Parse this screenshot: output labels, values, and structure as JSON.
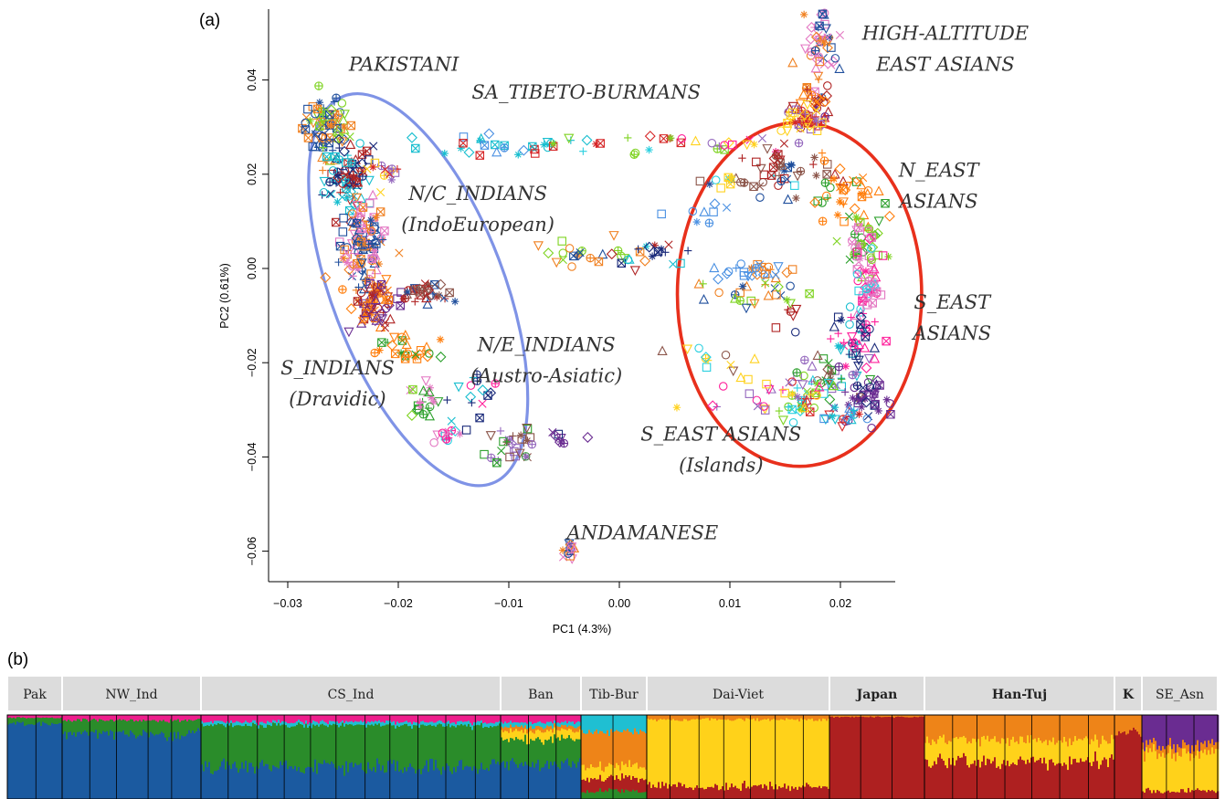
{
  "panel_a_label": "(a)",
  "panel_b_label": "(b)",
  "chart_data": [
    {
      "type": "scatter",
      "xlabel": "PC1 (4.3%)",
      "ylabel": "PC2 (0.61%)",
      "xlim": [
        -0.031,
        0.025
      ],
      "ylim": [
        -0.066,
        0.054
      ],
      "xticks": [
        -0.03,
        -0.02,
        -0.01,
        0.0,
        0.01,
        0.02
      ],
      "xtick_labels": [
        "−0.03",
        "−0.02",
        "−0.01",
        "0.00",
        "0.01",
        "0.02"
      ],
      "yticks": [
        -0.06,
        -0.04,
        -0.02,
        0.0,
        0.02,
        0.04
      ],
      "ytick_labels": [
        "−0.06",
        "−0.04",
        "−0.02",
        "0.00",
        "0.02",
        "0.04"
      ],
      "grid": false,
      "annotations": [
        {
          "lines": [
            "PAKISTANI"
          ],
          "x": -0.0195,
          "y": 0.042
        },
        {
          "lines": [
            "SA_TIBETO-BURMANS"
          ],
          "x": -0.003,
          "y": 0.036
        },
        {
          "lines": [
            "HIGH-ALTITUDE",
            "EAST ASIANS"
          ],
          "x": 0.0295,
          "y": 0.0485
        },
        {
          "lines": [
            "N/C_INDIANS",
            "(IndoEuropean)"
          ],
          "x": -0.0128,
          "y": 0.0145
        },
        {
          "lines": [
            "N_EAST",
            "ASIANS"
          ],
          "x": 0.0289,
          "y": 0.0195
        },
        {
          "lines": [
            "S_EAST",
            "ASIANS"
          ],
          "x": 0.0301,
          "y": -0.0085
        },
        {
          "lines": [
            "N/E_INDIANS",
            "(Austro-Asiatic)"
          ],
          "x": -0.0066,
          "y": -0.0175
        },
        {
          "lines": [
            "S_INDIANS",
            "(Dravidic)"
          ],
          "x": -0.0255,
          "y": -0.0225
        },
        {
          "lines": [
            "S_EAST ASIANS",
            "(Islands)"
          ],
          "x": 0.0092,
          "y": -0.0365
        },
        {
          "lines": [
            "ANDAMANESE"
          ],
          "x": 0.0021,
          "y": -0.0575
        }
      ],
      "ellipses": [
        {
          "name": "south-asian-ellipse",
          "color": "#7f93e6",
          "cx": -0.0182,
          "cy": -0.0045,
          "rx_deg": 0.0078,
          "ry": 0.044,
          "tilt_deg": 21
        },
        {
          "name": "east-asian-ellipse",
          "color": "#e8301c",
          "cx": 0.0163,
          "cy": -0.0055,
          "rx": 0.01105,
          "ry": 0.0365
        }
      ],
      "clusters": [
        {
          "x": -0.0265,
          "y": 0.03,
          "sx": 0.0011,
          "sy": 0.0035,
          "n": 75
        },
        {
          "x": -0.0245,
          "y": 0.019,
          "sx": 0.0011,
          "sy": 0.004,
          "n": 85
        },
        {
          "x": -0.0232,
          "y": 0.005,
          "sx": 0.001,
          "sy": 0.0045,
          "n": 110
        },
        {
          "x": -0.0222,
          "y": -0.007,
          "sx": 0.001,
          "sy": 0.0025,
          "n": 70
        },
        {
          "x": -0.0212,
          "y": 0.021,
          "sx": 0.0007,
          "sy": 0.0012,
          "n": 14
        },
        {
          "x": -0.0182,
          "y": -0.005,
          "sx": 0.0014,
          "sy": 0.0012,
          "n": 35
        },
        {
          "x": -0.0188,
          "y": -0.018,
          "sx": 0.0016,
          "sy": 0.002,
          "n": 28
        },
        {
          "x": -0.0175,
          "y": -0.028,
          "sx": 0.0009,
          "sy": 0.002,
          "n": 22
        },
        {
          "x": -0.0158,
          "y": -0.035,
          "sx": 0.0008,
          "sy": 0.0012,
          "n": 12
        },
        {
          "x": -0.0138,
          "y": -0.027,
          "sx": 0.0016,
          "sy": 0.0025,
          "n": 16
        },
        {
          "x": -0.0095,
          "y": -0.0365,
          "sx": 0.0011,
          "sy": 0.0025,
          "n": 30
        },
        {
          "x": -0.0052,
          "y": -0.036,
          "sx": 0.001,
          "sy": 0.0012,
          "n": 8
        },
        {
          "x": -0.0107,
          "y": 0.026,
          "sx": 0.0042,
          "sy": 0.0011,
          "n": 28
        },
        {
          "x": 0.0018,
          "y": 0.026,
          "sx": 0.004,
          "sy": 0.0012,
          "n": 16
        },
        {
          "x": 0.0101,
          "y": 0.0265,
          "sx": 0.002,
          "sy": 0.0008,
          "n": 12
        },
        {
          "x": 0.0105,
          "y": 0.0185,
          "sx": 0.0025,
          "sy": 0.001,
          "n": 16
        },
        {
          "x": 0.0066,
          "y": 0.013,
          "sx": 0.0018,
          "sy": 0.0015,
          "n": 8
        },
        {
          "x": -0.0028,
          "y": 0.003,
          "sx": 0.0028,
          "sy": 0.0018,
          "n": 22
        },
        {
          "x": 0.0025,
          "y": 0.003,
          "sx": 0.0018,
          "sy": 0.0015,
          "n": 18
        },
        {
          "x": 0.0182,
          "y": 0.047,
          "sx": 0.0008,
          "sy": 0.0045,
          "n": 55
        },
        {
          "x": 0.0175,
          "y": 0.0355,
          "sx": 0.0008,
          "sy": 0.002,
          "n": 25
        },
        {
          "x": 0.0169,
          "y": 0.0315,
          "sx": 0.0008,
          "sy": 0.0013,
          "n": 40
        },
        {
          "x": 0.0155,
          "y": 0.0205,
          "sx": 0.0025,
          "sy": 0.0025,
          "n": 40
        },
        {
          "x": 0.0203,
          "y": 0.015,
          "sx": 0.0016,
          "sy": 0.0035,
          "n": 40
        },
        {
          "x": 0.0219,
          "y": 0.006,
          "sx": 0.0009,
          "sy": 0.003,
          "n": 45
        },
        {
          "x": 0.0224,
          "y": -0.004,
          "sx": 0.0008,
          "sy": 0.004,
          "n": 45
        },
        {
          "x": 0.0214,
          "y": -0.016,
          "sx": 0.0011,
          "sy": 0.003,
          "n": 45
        },
        {
          "x": 0.0188,
          "y": -0.022,
          "sx": 0.0018,
          "sy": 0.0025,
          "n": 30
        },
        {
          "x": 0.0218,
          "y": -0.028,
          "sx": 0.0013,
          "sy": 0.0025,
          "n": 40
        },
        {
          "x": 0.0198,
          "y": -0.0315,
          "sx": 0.001,
          "sy": 0.001,
          "n": 18
        },
        {
          "x": 0.0165,
          "y": -0.028,
          "sx": 0.0018,
          "sy": 0.0025,
          "n": 30
        },
        {
          "x": 0.0135,
          "y": -0.0265,
          "sx": 0.0025,
          "sy": 0.002,
          "n": 24
        },
        {
          "x": 0.0087,
          "y": -0.0195,
          "sx": 0.002,
          "sy": 0.0025,
          "n": 12
        },
        {
          "x": 0.0125,
          "y": -0.0005,
          "sx": 0.0015,
          "sy": 0.001,
          "n": 28
        },
        {
          "x": 0.0125,
          "y": -0.0055,
          "sx": 0.0028,
          "sy": 0.0025,
          "n": 24
        },
        {
          "x": 0.0155,
          "y": -0.0105,
          "sx": 0.0012,
          "sy": 0.0015,
          "n": 6
        },
        {
          "x": -0.0044,
          "y": -0.0595,
          "sx": 0.0004,
          "sy": 0.0008,
          "n": 14
        }
      ],
      "marker_colors": [
        "#1f4e9c",
        "#1a2a7a",
        "#f08020",
        "#ff7f0e",
        "#d62728",
        "#b02424",
        "#2ca02c",
        "#7ed321",
        "#e377c2",
        "#ff1f9a",
        "#9467bd",
        "#6a2c91",
        "#17becf",
        "#2bd0e0",
        "#ffd21f",
        "#8c564b",
        "#4a90e2"
      ],
      "marker_shapes": [
        "square",
        "diamond",
        "circle",
        "triangle",
        "triangle-down",
        "cross",
        "x",
        "circle-plus",
        "square-x",
        "star"
      ]
    },
    {
      "type": "area",
      "title": "",
      "groups": [
        {
          "label": "Pak",
          "bold": false,
          "width": 60
        },
        {
          "label": "NW_Ind",
          "bold": false,
          "width": 152
        },
        {
          "label": "CS_Ind",
          "bold": false,
          "width": 328
        },
        {
          "label": "Ban",
          "bold": false,
          "width": 88
        },
        {
          "label": "Tib-Bur",
          "bold": false,
          "width": 72
        },
        {
          "label": "Dai-Viet",
          "bold": false,
          "width": 200
        },
        {
          "label": "Japan",
          "bold": true,
          "width": 104
        },
        {
          "label": "Han-Tuj",
          "bold": true,
          "width": 208
        },
        {
          "label": "K",
          "bold": true,
          "width": 30
        },
        {
          "label": "SE_Asn",
          "bold": false,
          "width": 83
        }
      ],
      "component_colors": {
        "blue": "#1b5aa0",
        "green": "#2a8c2a",
        "magenta": "#ee1e8c",
        "cyan": "#1fbfd2",
        "orange": "#ee8418",
        "yellow": "#ffd21a",
        "red": "#ae2020",
        "purple": "#6a2c91"
      },
      "admixture_profiles": [
        {
          "group": "Pak",
          "blue": 0.9,
          "green": 0.07,
          "magenta": 0.03
        },
        {
          "group": "NW_Ind",
          "blue": 0.78,
          "green": 0.16,
          "magenta": 0.06
        },
        {
          "group": "CS_Ind",
          "blue": 0.38,
          "green": 0.5,
          "magenta": 0.08,
          "cyan": 0.04
        },
        {
          "group": "Ban",
          "blue": 0.42,
          "green": 0.3,
          "magenta": 0.08,
          "cyan": 0.05,
          "orange": 0.05,
          "yellow": 0.1
        },
        {
          "group": "Tib-Bur",
          "cyan": 0.2,
          "orange": 0.4,
          "yellow": 0.15,
          "green": 0.1,
          "red": 0.15
        },
        {
          "group": "Dai-Viet",
          "yellow": 0.8,
          "orange": 0.05,
          "red": 0.15
        },
        {
          "group": "Japan",
          "red": 0.98,
          "orange": 0.02
        },
        {
          "group": "Han-Tuj",
          "orange": 0.3,
          "yellow": 0.25,
          "red": 0.45
        },
        {
          "group": "K",
          "red": 0.8,
          "orange": 0.2
        },
        {
          "group": "SE_Asn",
          "purple": 0.35,
          "yellow": 0.45,
          "orange": 0.1,
          "red": 0.1
        }
      ]
    }
  ]
}
